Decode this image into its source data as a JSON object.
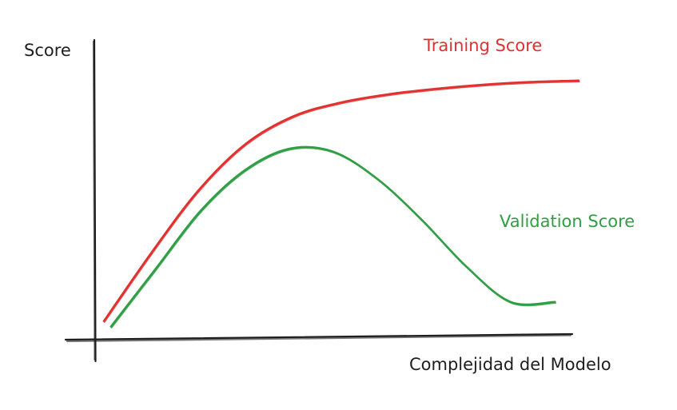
{
  "chart_data": {
    "type": "line",
    "title": "",
    "xlabel": "Complejidad del Modelo",
    "ylabel": "Score",
    "x": [
      0,
      0.1,
      0.2,
      0.3,
      0.4,
      0.5,
      0.6,
      0.7,
      0.8,
      0.9,
      1.0
    ],
    "xlim": [
      0,
      1
    ],
    "ylim": [
      0,
      1
    ],
    "grid": false,
    "legend": "inline-labels",
    "series": [
      {
        "name": "Training Score",
        "color": "#e03131",
        "values": [
          0.03,
          0.28,
          0.51,
          0.68,
          0.78,
          0.83,
          0.86,
          0.88,
          0.895,
          0.905,
          0.91
        ]
      },
      {
        "name": "Validation Score",
        "color": "#2f9e44",
        "values": [
          0.01,
          0.22,
          0.43,
          0.58,
          0.66,
          0.65,
          0.55,
          0.4,
          0.23,
          0.1,
          0.1
        ]
      }
    ]
  }
}
